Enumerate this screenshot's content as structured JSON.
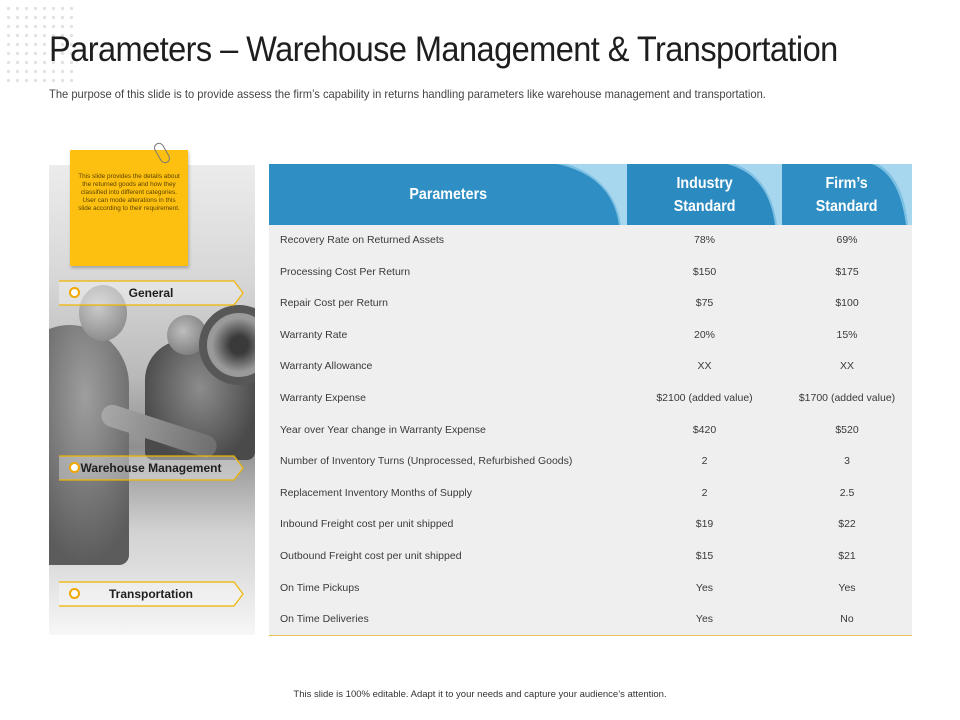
{
  "header": {
    "title": "Parameters – Warehouse Management & Transportation",
    "subtitle": "The purpose of this slide is to provide assess the firm’s capability in returns handling parameters like warehouse management and transportation."
  },
  "sticky_note": {
    "text": "This slide provides the details about the returned goods and how they classified into different categories. User can mode alterations in this slide according to their requirement."
  },
  "categories": [
    "General",
    "Warehouse Management",
    "Transportation"
  ],
  "table": {
    "headers": [
      "Parameters",
      "Industry Standard",
      "Firm’s Standard"
    ],
    "rows": [
      [
        "Recovery Rate on Returned Assets",
        "78%",
        "69%"
      ],
      [
        "Processing Cost Per Return",
        "$150",
        "$175"
      ],
      [
        "Repair Cost per Return",
        "$75",
        "$100"
      ],
      [
        "Warranty Rate",
        "20%",
        "15%"
      ],
      [
        "Warranty Allowance",
        "XX",
        "XX"
      ],
      [
        "Warranty Expense",
        "$2100 (added value)",
        "$1700 (added value)"
      ],
      [
        "Year over Year change in Warranty Expense",
        "$420",
        "$520"
      ],
      [
        "Number of Inventory Turns (Unprocessed, Refurbished Goods)",
        "2",
        "3"
      ],
      [
        "Replacement Inventory Months of Supply",
        "2",
        "2.5"
      ],
      [
        "Inbound Freight cost per unit shipped",
        "$19",
        "$22"
      ],
      [
        "Outbound Freight cost per unit shipped",
        "$15",
        "$21"
      ],
      [
        "On Time Pickups",
        "Yes",
        "Yes"
      ],
      [
        "On Time Deliveries",
        "Yes",
        "No"
      ]
    ]
  },
  "footer": {
    "text": "This slide is 100% editable. Adapt it to your needs and capture your audience’s attention."
  },
  "colors": {
    "header_blue": "#2f8fc4",
    "header_curve_light": "#7cc0e4",
    "accent_yellow": "#fdc010",
    "row_background": "#efefef"
  },
  "icons": {
    "paper_clip": "paper-clip-icon",
    "tag_bullet": "circle-bullet-icon"
  }
}
